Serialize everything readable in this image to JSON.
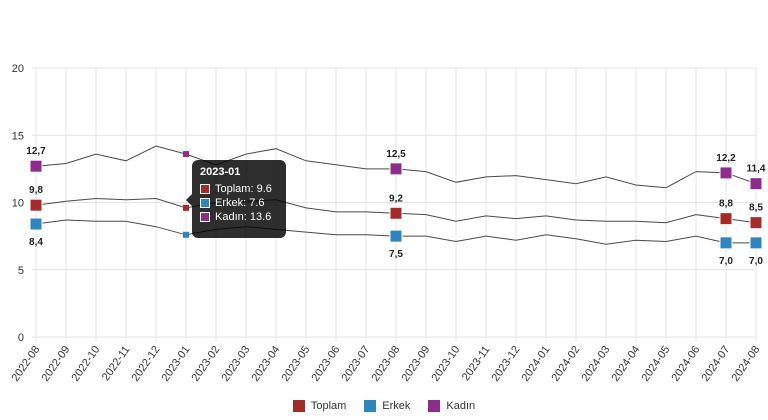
{
  "chart_data": {
    "type": "line",
    "x": [
      "2022-08",
      "2022-09",
      "2022-10",
      "2022-11",
      "2022-12",
      "2023-01",
      "2023-02",
      "2023-03",
      "2023-04",
      "2023-05",
      "2023-06",
      "2023-07",
      "2023-08",
      "2023-09",
      "2023-10",
      "2023-11",
      "2023-12",
      "2024-01",
      "2024-02",
      "2024-03",
      "2024-04",
      "2024-05",
      "2024-06",
      "2024-07",
      "2024-08"
    ],
    "ylim": [
      0,
      20
    ],
    "yticks": [
      0,
      5,
      10,
      15,
      20
    ],
    "grid": true,
    "legend_position": "bottom",
    "series": [
      {
        "name": "Toplam",
        "color": "#a52a2a",
        "values": [
          9.8,
          10.1,
          10.3,
          10.2,
          10.3,
          9.6,
          10.0,
          10.1,
          10.2,
          9.6,
          9.3,
          9.3,
          9.2,
          9.1,
          8.6,
          9.0,
          8.8,
          9.0,
          8.7,
          8.6,
          8.6,
          8.5,
          9.1,
          8.8,
          8.5
        ]
      },
      {
        "name": "Erkek",
        "color": "#2e86c1",
        "values": [
          8.4,
          8.7,
          8.6,
          8.6,
          8.2,
          7.6,
          8.0,
          8.2,
          8.0,
          7.8,
          7.6,
          7.6,
          7.5,
          7.5,
          7.1,
          7.5,
          7.2,
          7.6,
          7.3,
          6.9,
          7.2,
          7.1,
          7.5,
          7.0,
          7.0
        ]
      },
      {
        "name": "Kadın",
        "color": "#8e2c8e",
        "values": [
          12.7,
          12.9,
          13.6,
          13.1,
          14.2,
          13.6,
          12.8,
          13.6,
          14.0,
          13.1,
          12.8,
          12.5,
          12.5,
          12.3,
          11.5,
          11.9,
          12.0,
          11.7,
          11.4,
          11.9,
          11.3,
          11.1,
          12.3,
          12.2,
          11.4
        ]
      }
    ],
    "data_labels": [
      {
        "series": 0,
        "index": 0,
        "text": "9,8",
        "pos": "above"
      },
      {
        "series": 1,
        "index": 0,
        "text": "8,4",
        "pos": "below"
      },
      {
        "series": 2,
        "index": 0,
        "text": "12,7",
        "pos": "above"
      },
      {
        "series": 0,
        "index": 12,
        "text": "9,2",
        "pos": "above"
      },
      {
        "series": 1,
        "index": 12,
        "text": "7,5",
        "pos": "below"
      },
      {
        "series": 2,
        "index": 12,
        "text": "12,5",
        "pos": "above"
      },
      {
        "series": 0,
        "index": 23,
        "text": "8,8",
        "pos": "above"
      },
      {
        "series": 1,
        "index": 23,
        "text": "7,0",
        "pos": "below"
      },
      {
        "series": 2,
        "index": 23,
        "text": "12,2",
        "pos": "above"
      },
      {
        "series": 0,
        "index": 24,
        "text": "8,5",
        "pos": "above"
      },
      {
        "series": 1,
        "index": 24,
        "text": "7,0",
        "pos": "below"
      },
      {
        "series": 2,
        "index": 24,
        "text": "11,4",
        "pos": "above"
      }
    ],
    "tooltip": {
      "title": "2023-01",
      "rows": [
        {
          "text": "Toplam: 9.6",
          "color": "#a52a2a"
        },
        {
          "text": "Erkek: 7.6",
          "color": "#2e86c1"
        },
        {
          "text": "Kadın: 13.6",
          "color": "#8e2c8e"
        }
      ]
    }
  }
}
